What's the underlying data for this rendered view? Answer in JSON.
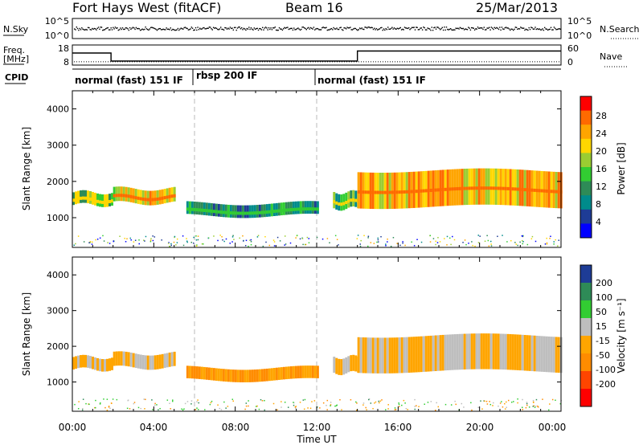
{
  "header": {
    "station": "Fort Hays West (fitACF)",
    "beam": "Beam 16",
    "date": "25/Mar/2013"
  },
  "noise_panel": {
    "left_label": "N.Sky",
    "right_label": "N.Search",
    "left_ticks": [
      "10^5",
      "10^0"
    ],
    "right_ticks": [
      "10^5",
      "10^0"
    ]
  },
  "freq_panel": {
    "left_label_1": "Freq.",
    "left_label_2": "[MHz]",
    "left_ticks": [
      "18",
      "8"
    ],
    "right_label": "Nave",
    "right_ticks": [
      "60",
      "0"
    ]
  },
  "cpid": {
    "label": "CPID",
    "segments": [
      {
        "text": "normal (fast) 151 IF",
        "start_h": 0,
        "end_h": 6
      },
      {
        "text": "rbsp 200 IF",
        "start_h": 6,
        "end_h": 12
      },
      {
        "text": "normal (fast) 151 IF",
        "start_h": 12,
        "end_h": 24
      }
    ]
  },
  "axes": {
    "xlabel": "Time UT",
    "ylabel_1": "Slant Range [km]",
    "ylabel_2": "Slant Range [km]",
    "x_ticks": [
      "00:00",
      "04:00",
      "08:00",
      "12:00",
      "16:00",
      "20:00",
      "00:00"
    ],
    "y_ticks": [
      "1000",
      "2000",
      "3000",
      "4000"
    ]
  },
  "power_bar": {
    "label": "Power [dB]",
    "ticks": [
      "28",
      "24",
      "20",
      "16",
      "12",
      "8",
      "4"
    ],
    "colors": [
      "#ff0000",
      "#ff6a00",
      "#ffa500",
      "#ffd700",
      "#9acd32",
      "#32cd32",
      "#2e8b57",
      "#008b8b",
      "#1e3c96",
      "#0000ff"
    ]
  },
  "velocity_bar": {
    "label": "Velocity [m s⁻¹]",
    "ticks": [
      "200",
      "100",
      "50",
      "15",
      "-15",
      "-50",
      "-100",
      "-200"
    ],
    "colors": [
      "#1e3c96",
      "#2e8b57",
      "#32cd32",
      "#bebebe",
      "#ffa500",
      "#ff8c00",
      "#ff4500",
      "#ff0000"
    ]
  },
  "chart_data": {
    "type": "heatmap",
    "title": "Fort Hays West (fitACF)",
    "xlabel": "Time UT",
    "ylabel": "Slant Range [km]",
    "x_range_hours": [
      0,
      24
    ],
    "y_range_km": [
      180,
      4500
    ],
    "frequency_mhz": [
      {
        "start_h": 0,
        "end_h": 1.9,
        "value": 14
      },
      {
        "start_h": 1.9,
        "end_h": 14.0,
        "value": 10
      },
      {
        "start_h": 14.0,
        "end_h": 24,
        "value": 15
      }
    ],
    "nave_level": 10,
    "scatter_bands": [
      {
        "name": "band-1",
        "start_h": 0.0,
        "end_h": 2.0,
        "range_km": [
          1350,
          1700
        ],
        "power_db": 18,
        "velocity": -15
      },
      {
        "name": "band-2",
        "start_h": 2.0,
        "end_h": 5.0,
        "range_km": [
          1400,
          1800
        ],
        "power_db": 22,
        "velocity": -15
      },
      {
        "name": "band-3",
        "start_h": 5.6,
        "end_h": 12.0,
        "range_km": [
          1050,
          1400
        ],
        "power_db": 12,
        "velocity": -50
      },
      {
        "name": "band-4",
        "start_h": 12.8,
        "end_h": 14.0,
        "range_km": [
          1250,
          1700
        ],
        "power_db": 16,
        "velocity": -15
      },
      {
        "name": "band-5",
        "start_h": 14.0,
        "end_h": 24.0,
        "range_km": [
          1300,
          2300
        ],
        "power_db": 24,
        "velocity": -15
      }
    ]
  }
}
